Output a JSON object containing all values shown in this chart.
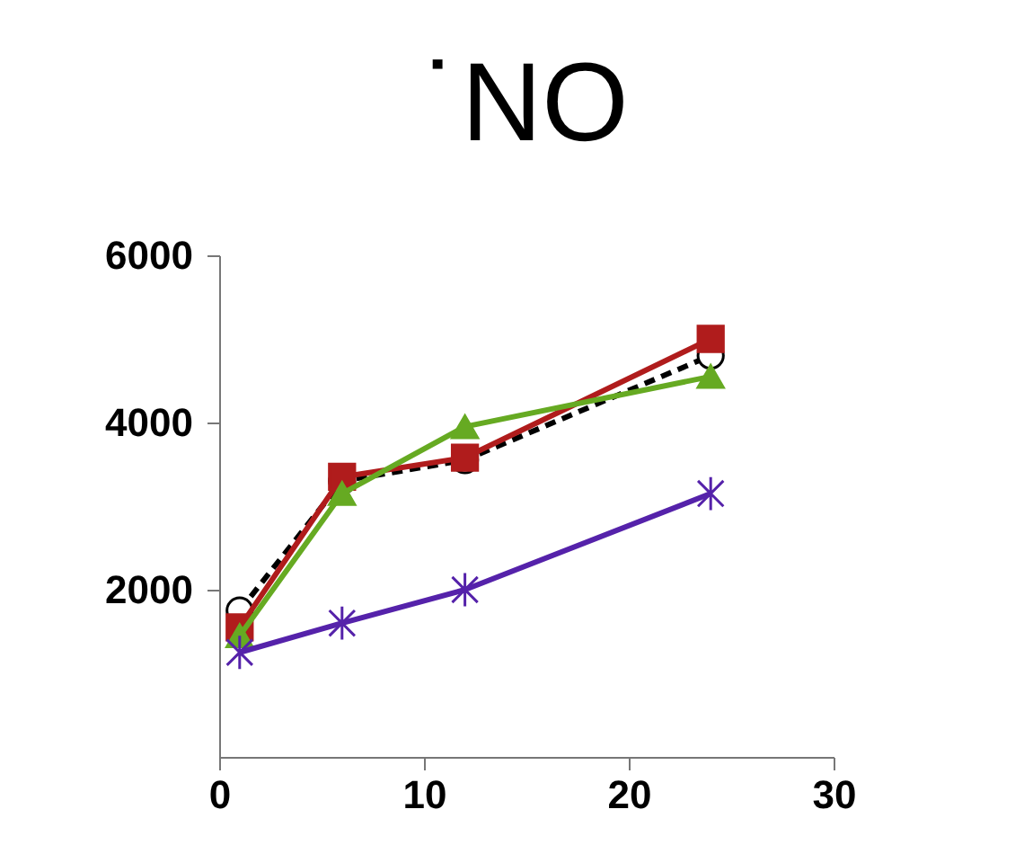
{
  "chart_data": {
    "type": "line",
    "title": "˙NO",
    "x": [
      1,
      6,
      12,
      24
    ],
    "xlim": [
      0,
      30
    ],
    "xticks": [
      0,
      10,
      20,
      30
    ],
    "ylim": [
      0,
      6000
    ],
    "yticks": [
      2000,
      4000,
      6000
    ],
    "grid": false,
    "series": [
      {
        "color": "#000000",
        "values": [
          1750,
          3300,
          3550,
          4800
        ],
        "marker": "circle",
        "line_style": "dashed"
      },
      {
        "color": "#b01c1c",
        "values": [
          1550,
          3350,
          3580,
          5000
        ],
        "marker": "square",
        "line_style": "solid"
      },
      {
        "color": "#66aa22",
        "values": [
          1450,
          3150,
          3950,
          4550
        ],
        "marker": "triangle",
        "line_style": "solid"
      },
      {
        "color": "#5522aa",
        "values": [
          1250,
          1600,
          2000,
          3150
        ],
        "marker": "cross",
        "line_style": "solid"
      }
    ]
  }
}
